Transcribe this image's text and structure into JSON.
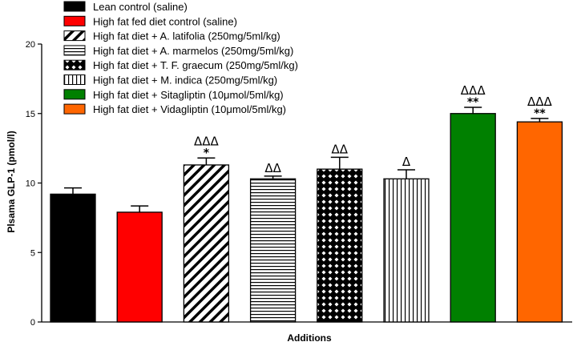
{
  "chart_data": {
    "type": "bar",
    "title": "",
    "xlabel": "Additions",
    "ylabel": "Plsama GLP-1 (pmol/l)",
    "ylim": [
      0,
      20
    ],
    "yticks": [
      0,
      5,
      10,
      15,
      20
    ],
    "grid": false,
    "legend_position": "top-left",
    "series": [
      {
        "name": "Lean control (saline)",
        "value": 9.2,
        "error": 0.45,
        "color": "#000000",
        "pattern": "solid",
        "sig_delta": "",
        "sig_star": ""
      },
      {
        "name": "High fat fed diet control (saline)",
        "value": 7.9,
        "error": 0.45,
        "color": "#ff0000",
        "pattern": "solid",
        "sig_delta": "",
        "sig_star": ""
      },
      {
        "name": "High fat diet + A. latifolia (250mg/5ml/kg)",
        "value": 11.3,
        "error": 0.5,
        "color": "#000000",
        "pattern": "diagonal",
        "sig_delta": "ΔΔΔ",
        "sig_star": "*"
      },
      {
        "name": "High fat diet + A. marmelos (250mg/5ml/kg)",
        "value": 10.3,
        "error": 0.2,
        "color": "#000000",
        "pattern": "horizontal",
        "sig_delta": "ΔΔ",
        "sig_star": ""
      },
      {
        "name": "High fat diet + T. F. graecum (250mg/5ml/kg)",
        "value": 11.0,
        "error": 0.85,
        "color": "#000000",
        "pattern": "crosshatch",
        "sig_delta": "ΔΔ",
        "sig_star": ""
      },
      {
        "name": "High fat diet + M. indica (250mg/5ml/kg)",
        "value": 10.3,
        "error": 0.65,
        "color": "#000000",
        "pattern": "vertical",
        "sig_delta": "Δ",
        "sig_star": ""
      },
      {
        "name": "High fat diet + Sitagliptin (10μmol/5ml/kg)",
        "value": 15.0,
        "error": 0.45,
        "color": "#008000",
        "pattern": "solid",
        "sig_delta": "ΔΔΔ",
        "sig_star": "**"
      },
      {
        "name": "High fat diet + Vidagliptin (10μmol/5ml/kg)",
        "value": 14.4,
        "error": 0.25,
        "color": "#ff6600",
        "pattern": "solid",
        "sig_delta": "ΔΔΔ",
        "sig_star": "**"
      }
    ]
  }
}
